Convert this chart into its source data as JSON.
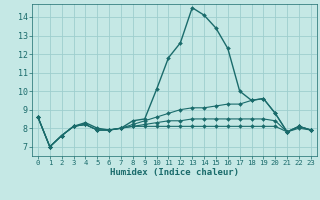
{
  "xlabel": "Humidex (Indice chaleur)",
  "xlim": [
    -0.5,
    23.5
  ],
  "ylim": [
    6.5,
    14.7
  ],
  "yticks": [
    7,
    8,
    9,
    10,
    11,
    12,
    13,
    14
  ],
  "xticks": [
    0,
    1,
    2,
    3,
    4,
    5,
    6,
    7,
    8,
    9,
    10,
    11,
    12,
    13,
    14,
    15,
    16,
    17,
    18,
    19,
    20,
    21,
    22,
    23
  ],
  "background_color": "#c5e8e5",
  "grid_color": "#9ecece",
  "line_color": "#1a6b6b",
  "curves": [
    {
      "x": [
        0,
        1,
        2,
        3,
        4,
        5,
        6,
        7,
        8,
        9,
        10,
        11,
        12,
        13,
        14,
        15,
        16,
        17,
        18,
        19,
        20,
        21,
        22,
        23
      ],
      "y": [
        8.6,
        7.0,
        7.6,
        8.1,
        8.3,
        8.0,
        7.9,
        8.0,
        8.4,
        8.5,
        10.1,
        11.8,
        12.6,
        14.5,
        14.1,
        13.4,
        12.3,
        10.0,
        9.5,
        9.6,
        8.8,
        7.8,
        8.1,
        7.9
      ]
    },
    {
      "x": [
        0,
        1,
        2,
        3,
        4,
        5,
        6,
        7,
        8,
        9,
        10,
        11,
        12,
        13,
        14,
        15,
        16,
        17,
        18,
        19,
        20,
        21,
        22,
        23
      ],
      "y": [
        8.6,
        7.0,
        7.6,
        8.1,
        8.2,
        7.9,
        7.9,
        8.0,
        8.2,
        8.4,
        8.6,
        8.8,
        9.0,
        9.1,
        9.1,
        9.2,
        9.3,
        9.3,
        9.5,
        9.6,
        8.8,
        7.8,
        8.1,
        7.9
      ]
    },
    {
      "x": [
        0,
        1,
        2,
        3,
        4,
        5,
        6,
        7,
        8,
        9,
        10,
        11,
        12,
        13,
        14,
        15,
        16,
        17,
        18,
        19,
        20,
        21,
        22,
        23
      ],
      "y": [
        8.6,
        7.0,
        7.6,
        8.1,
        8.2,
        7.9,
        7.9,
        8.0,
        8.1,
        8.2,
        8.3,
        8.4,
        8.4,
        8.5,
        8.5,
        8.5,
        8.5,
        8.5,
        8.5,
        8.5,
        8.4,
        7.8,
        8.1,
        7.9
      ]
    },
    {
      "x": [
        0,
        1,
        2,
        3,
        4,
        5,
        6,
        7,
        8,
        9,
        10,
        11,
        12,
        13,
        14,
        15,
        16,
        17,
        18,
        19,
        20,
        21,
        22,
        23
      ],
      "y": [
        8.6,
        7.0,
        7.6,
        8.1,
        8.2,
        7.9,
        7.9,
        8.0,
        8.1,
        8.1,
        8.1,
        8.1,
        8.1,
        8.1,
        8.1,
        8.1,
        8.1,
        8.1,
        8.1,
        8.1,
        8.1,
        7.8,
        8.0,
        7.9
      ]
    }
  ]
}
